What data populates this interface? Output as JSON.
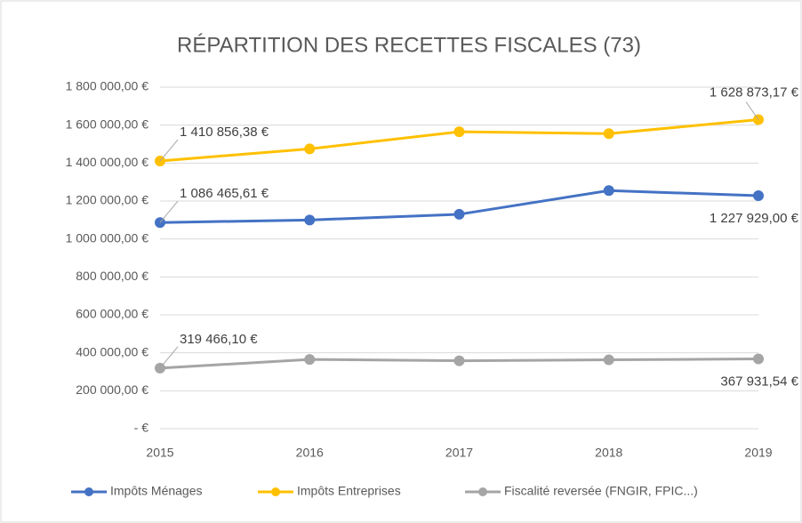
{
  "chart_data": {
    "type": "line",
    "title": "RÉPARTITION DES RECETTES FISCALES (73)",
    "categories": [
      "2015",
      "2016",
      "2017",
      "2018",
      "2019"
    ],
    "series": [
      {
        "name": "Impôts Ménages",
        "color": "#4472c4",
        "values": [
          1086465.61,
          1100000,
          1130000,
          1255000,
          1227929.0
        ],
        "value_labels": [
          "1 086 465,61 €",
          null,
          null,
          null,
          "1 227 929,00 €"
        ]
      },
      {
        "name": "Impôts Entreprises",
        "color": "#ffc000",
        "values": [
          1410856.38,
          1475000,
          1565000,
          1555000,
          1628873.17
        ],
        "value_labels": [
          "1 410 856,38 €",
          null,
          null,
          null,
          "1 628 873,17 €"
        ]
      },
      {
        "name": "Fiscalité reversée (FNGIR, FPIC...)",
        "color": "#a5a5a5",
        "values": [
          319466.1,
          365000,
          358000,
          363000,
          367931.54
        ],
        "value_labels": [
          "319 466,10 €",
          null,
          null,
          null,
          "367 931,54 €"
        ]
      }
    ],
    "ylim": [
      0,
      1800000
    ],
    "yticks": [
      {
        "value": 0,
        "label": "-   €"
      },
      {
        "value": 200000,
        "label": "200 000,00 €"
      },
      {
        "value": 400000,
        "label": "400 000,00 €"
      },
      {
        "value": 600000,
        "label": "600 000,00 €"
      },
      {
        "value": 800000,
        "label": "800 000,00 €"
      },
      {
        "value": 1000000,
        "label": "1 000 000,00 €"
      },
      {
        "value": 1200000,
        "label": "1 200 000,00 €"
      },
      {
        "value": 1400000,
        "label": "1 400 000,00 €"
      },
      {
        "value": 1600000,
        "label": "1 600 000,00 €"
      },
      {
        "value": 1800000,
        "label": "1 800 000,00 €"
      }
    ],
    "grid": true,
    "legend": "bottom"
  }
}
